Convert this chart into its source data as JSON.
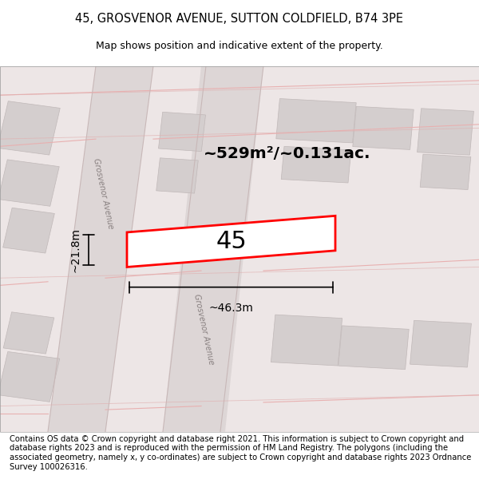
{
  "title_line1": "45, GROSVENOR AVENUE, SUTTON COLDFIELD, B74 3PE",
  "title_line2": "Map shows position and indicative extent of the property.",
  "footer_text": "Contains OS data © Crown copyright and database right 2021. This information is subject to Crown copyright and database rights 2023 and is reproduced with the permission of HM Land Registry. The polygons (including the associated geometry, namely x, y co-ordinates) are subject to Crown copyright and database rights 2023 Ordnance Survey 100026316.",
  "area_label": "~529m²/~0.131ac.",
  "number_label": "45",
  "width_label": "~46.3m",
  "height_label": "~21.8m",
  "map_bg": "#ede6e6",
  "building_color": "#d4cece",
  "building_edge": "#c0b8b8",
  "plot_color": "#ffffff",
  "plot_border_color": "#ff0000",
  "road_band_color": "#ddd6d6",
  "road_line_color": "#e8b0b0",
  "road_edge_color": "#c8b8b8",
  "road_label": "Grosvenor Avenue",
  "road_label_color": "#888080"
}
